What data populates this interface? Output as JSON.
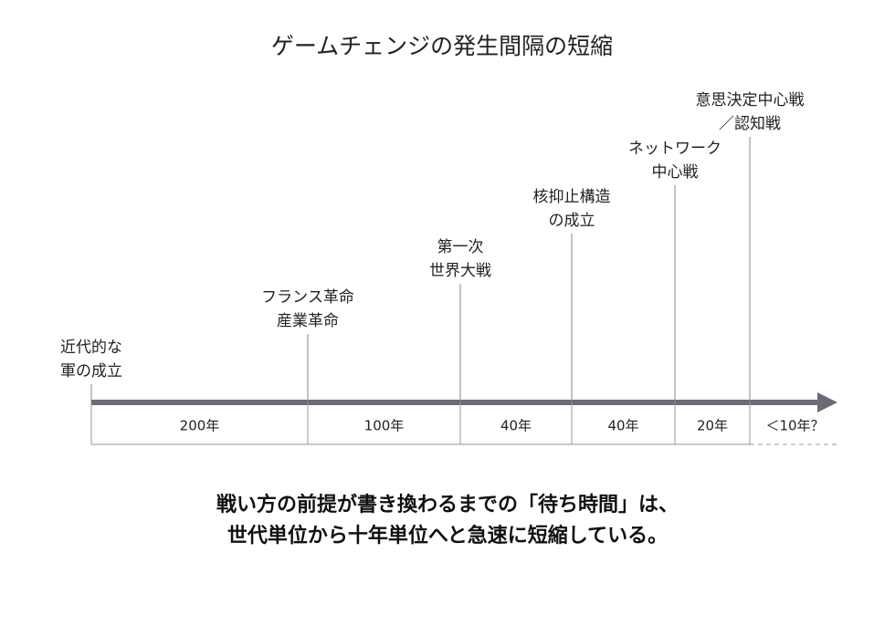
{
  "title": "ゲームチェンジの発生間隔の短縮",
  "events": [
    {
      "lines": [
        "近代的な",
        "軍の成立"
      ]
    },
    {
      "lines": [
        "フランス革命",
        "産業革命"
      ]
    },
    {
      "lines": [
        "第一次",
        "世界大戦"
      ]
    },
    {
      "lines": [
        "核抑止構造",
        "の成立"
      ]
    },
    {
      "lines": [
        "ネットワーク",
        "中心戦"
      ]
    },
    {
      "lines": [
        "意思決定中心戦",
        "／認知戦"
      ]
    }
  ],
  "intervals": [
    "200年",
    "100年",
    "40年",
    "40年",
    "20年",
    "＜10年？"
  ],
  "conclusion": [
    "戦い方の前提が書き換わるまでの「待ち時間」は、",
    "世代単位から十年単位へと急速に短縮している。"
  ]
}
